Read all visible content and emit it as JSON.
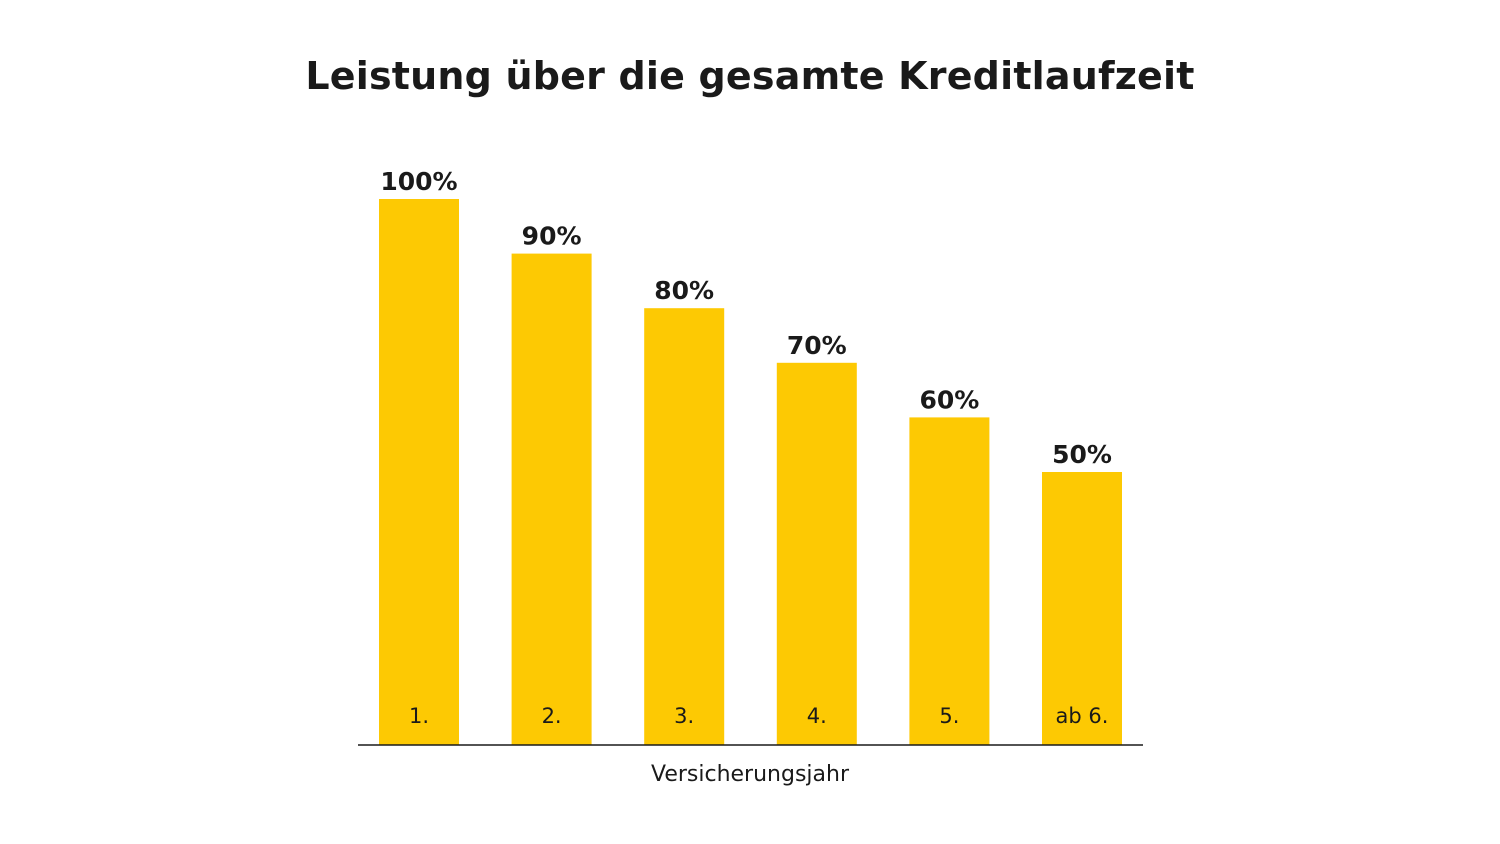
{
  "chart_data": {
    "type": "bar",
    "title": "Leistung über die gesamte Kreditlaufzeit",
    "xlabel": "Versicherungsjahr",
    "ylabel": "",
    "categories": [
      "1.",
      "2.",
      "3.",
      "4.",
      "5.",
      "ab 6."
    ],
    "values": [
      100,
      90,
      80,
      70,
      60,
      50
    ],
    "data_labels": [
      "100%",
      "90%",
      "80%",
      "70%",
      "60%",
      "50%"
    ],
    "ylim": [
      0,
      100
    ],
    "grid": false,
    "legend": "none",
    "colors": {
      "bar": "#FDC903",
      "axis": "#1a1a1a",
      "text": "#1a1a1a"
    }
  }
}
